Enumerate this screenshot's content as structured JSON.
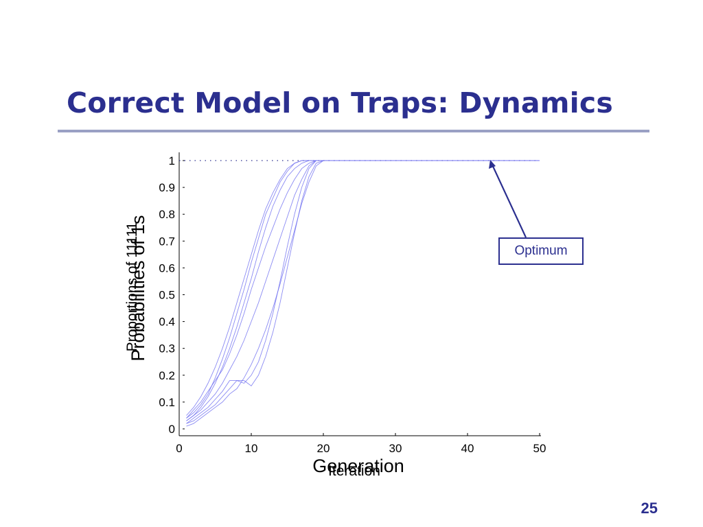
{
  "slide": {
    "title": "Correct Model on Traps: Dynamics",
    "page_number": "25"
  },
  "colors": {
    "title": "#2b2f8f",
    "rule": "#9aa0c4",
    "series_line": "#6d6df0",
    "annotation": "#2b2f8f"
  },
  "chart_data": {
    "type": "line",
    "xlabel_primary": "Generation",
    "xlabel_overlay": "Iteration",
    "ylabel_primary": "Probabilities of 1s",
    "ylabel_overlay": "Proportions of 11111",
    "xlim": [
      0,
      50
    ],
    "ylim": [
      0,
      1
    ],
    "xticks": [
      0,
      10,
      20,
      30,
      40,
      50
    ],
    "yticks": [
      0,
      0.1,
      0.2,
      0.3,
      0.4,
      0.5,
      0.6,
      0.7,
      0.8,
      0.9,
      1
    ],
    "ytick_labels": [
      "0",
      "0.1",
      "0.2",
      "0.3",
      "0.4",
      "0.5",
      "0.6",
      "0.7",
      "0.8",
      "0.9",
      "1"
    ],
    "grid": false,
    "series": [
      {
        "x": [
          1,
          2,
          3,
          4,
          5,
          6,
          7,
          8,
          9,
          10,
          11,
          12,
          13,
          14,
          15,
          16,
          17,
          18,
          19,
          20,
          50
        ],
        "values": [
          0.05,
          0.08,
          0.12,
          0.17,
          0.23,
          0.3,
          0.38,
          0.47,
          0.56,
          0.65,
          0.74,
          0.82,
          0.88,
          0.93,
          0.97,
          0.99,
          1,
          1,
          1,
          1,
          1
        ]
      },
      {
        "x": [
          1,
          2,
          3,
          4,
          5,
          6,
          7,
          8,
          9,
          10,
          11,
          12,
          13,
          14,
          15,
          16,
          17,
          18,
          19,
          20,
          50
        ],
        "values": [
          0.04,
          0.06,
          0.09,
          0.13,
          0.19,
          0.26,
          0.34,
          0.43,
          0.52,
          0.62,
          0.71,
          0.8,
          0.86,
          0.92,
          0.96,
          0.99,
          1,
          1,
          1,
          1,
          1
        ]
      },
      {
        "x": [
          1,
          2,
          3,
          4,
          5,
          6,
          7,
          8,
          9,
          10,
          11,
          12,
          13,
          14,
          15,
          16,
          17,
          18,
          19,
          20,
          50
        ],
        "values": [
          0.03,
          0.05,
          0.08,
          0.12,
          0.17,
          0.23,
          0.3,
          0.38,
          0.47,
          0.56,
          0.66,
          0.75,
          0.83,
          0.89,
          0.94,
          0.97,
          0.99,
          1,
          1,
          1,
          1
        ]
      },
      {
        "x": [
          1,
          2,
          3,
          4,
          5,
          6,
          7,
          8,
          9,
          10,
          11,
          12,
          13,
          14,
          15,
          16,
          17,
          18,
          19,
          20,
          50
        ],
        "values": [
          0.04,
          0.07,
          0.1,
          0.14,
          0.18,
          0.22,
          0.28,
          0.35,
          0.43,
          0.52,
          0.6,
          0.68,
          0.75,
          0.82,
          0.88,
          0.93,
          0.97,
          0.99,
          1,
          1,
          1
        ]
      },
      {
        "x": [
          1,
          2,
          3,
          4,
          5,
          6,
          7,
          8,
          9,
          10,
          11,
          12,
          13,
          14,
          15,
          16,
          17,
          18,
          19,
          20,
          50
        ],
        "values": [
          0.03,
          0.05,
          0.07,
          0.1,
          0.13,
          0.17,
          0.22,
          0.27,
          0.33,
          0.4,
          0.47,
          0.55,
          0.63,
          0.71,
          0.79,
          0.87,
          0.93,
          0.98,
          1,
          1,
          1
        ]
      },
      {
        "x": [
          1,
          2,
          3,
          4,
          5,
          6,
          7,
          8,
          9,
          10,
          11,
          12,
          13,
          14,
          15,
          16,
          17,
          18,
          19,
          20,
          50
        ],
        "values": [
          0.02,
          0.04,
          0.06,
          0.08,
          0.11,
          0.14,
          0.18,
          0.18,
          0.17,
          0.2,
          0.25,
          0.33,
          0.43,
          0.55,
          0.68,
          0.8,
          0.9,
          0.97,
          1,
          1,
          1
        ]
      },
      {
        "x": [
          1,
          2,
          3,
          4,
          5,
          6,
          7,
          8,
          9,
          10,
          11,
          12,
          13,
          14,
          15,
          16,
          17,
          18,
          19,
          20,
          50
        ],
        "values": [
          0.02,
          0.03,
          0.05,
          0.07,
          0.09,
          0.12,
          0.15,
          0.18,
          0.18,
          0.16,
          0.2,
          0.27,
          0.36,
          0.47,
          0.6,
          0.73,
          0.85,
          0.94,
          0.99,
          1,
          1
        ]
      },
      {
        "x": [
          1,
          2,
          3,
          4,
          5,
          6,
          7,
          8,
          9,
          10,
          11,
          12,
          13,
          14,
          15,
          16,
          17,
          18,
          19,
          20,
          50
        ],
        "values": [
          0.01,
          0.02,
          0.04,
          0.06,
          0.08,
          0.1,
          0.13,
          0.15,
          0.19,
          0.24,
          0.3,
          0.37,
          0.45,
          0.54,
          0.64,
          0.74,
          0.84,
          0.92,
          0.98,
          1,
          1
        ]
      }
    ],
    "reference_line": {
      "y": 1,
      "style": "dotted"
    },
    "annotations": [
      {
        "text": "Optimum",
        "x": 43,
        "y": 1
      }
    ]
  }
}
